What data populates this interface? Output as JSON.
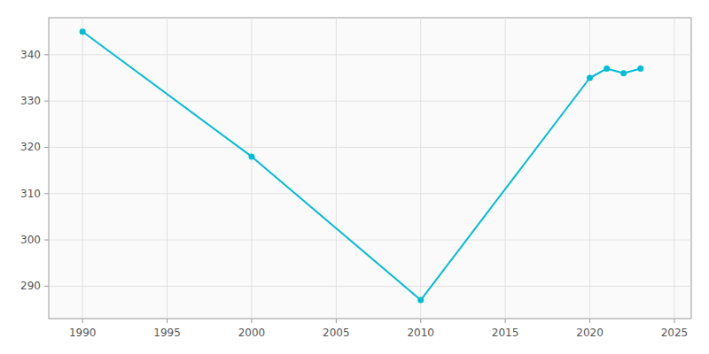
{
  "chart_data": {
    "type": "line",
    "x": [
      1990,
      2000,
      2010,
      2020,
      2021,
      2022,
      2023
    ],
    "values": [
      345,
      318,
      287,
      335,
      337,
      336,
      337
    ],
    "color": "#00BCD4",
    "marker": "circle",
    "xlim": [
      1988,
      2026
    ],
    "ylim": [
      283,
      348
    ],
    "xticks": [
      1990,
      1995,
      2000,
      2005,
      2010,
      2015,
      2020,
      2025
    ],
    "yticks": [
      290,
      300,
      310,
      320,
      330,
      340
    ],
    "grid": true
  }
}
